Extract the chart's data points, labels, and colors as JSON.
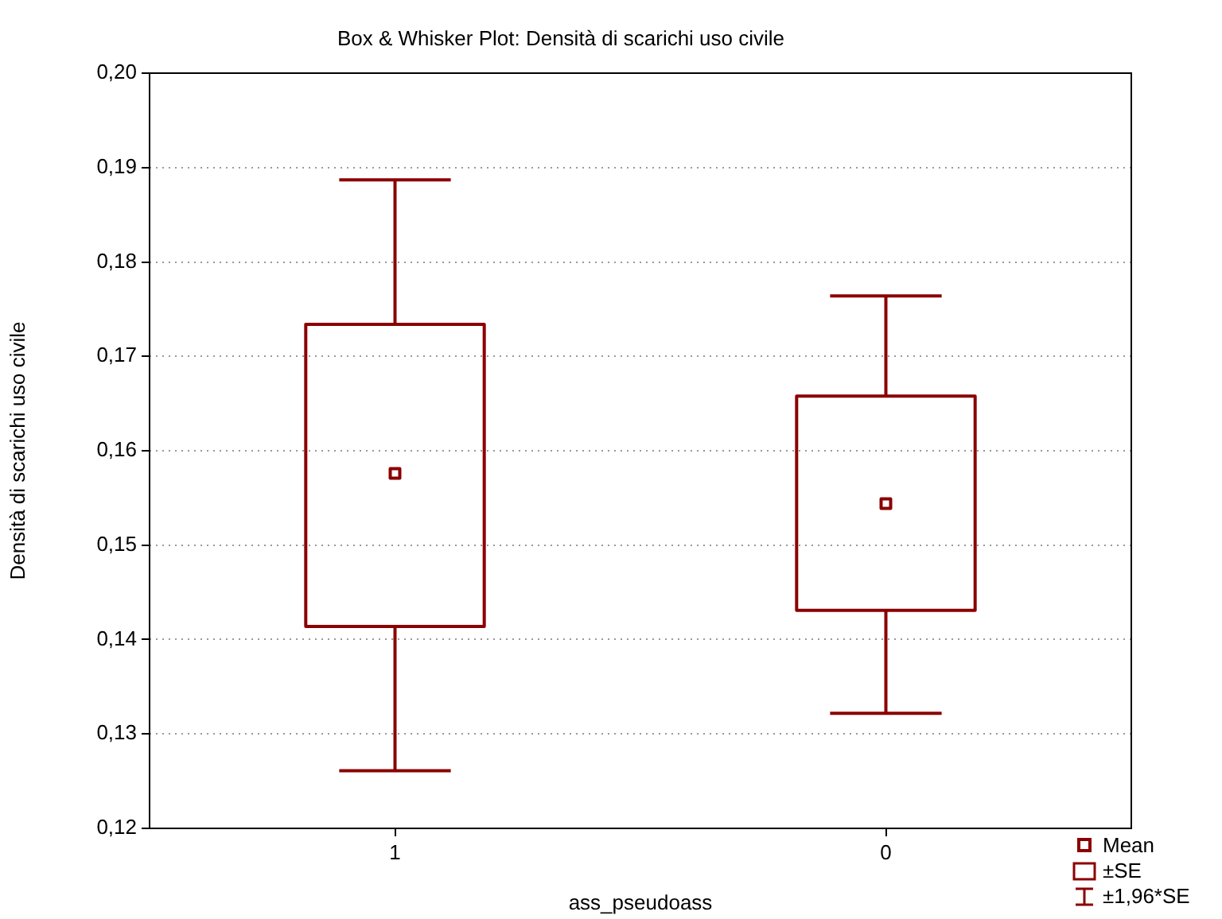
{
  "chart_data": {
    "type": "box",
    "title": "Box & Whisker Plot: Densità di scarichi uso civile",
    "xlabel": "ass_pseudoass",
    "ylabel": "Densità di scarichi uso civile",
    "categories": [
      "1",
      "0"
    ],
    "boxes": [
      {
        "low": 0.1261,
        "q1": 0.1414,
        "q3": 0.1734,
        "high": 0.1887,
        "mean": 0.1576
      },
      {
        "low": 0.1322,
        "q1": 0.1431,
        "q3": 0.1658,
        "high": 0.1764,
        "mean": 0.1544
      }
    ],
    "color": "#8b0000",
    "ylim": [
      0.12,
      0.2
    ],
    "yticks": [
      {
        "value": 0.12,
        "label": "0,12"
      },
      {
        "value": 0.13,
        "label": "0,13"
      },
      {
        "value": 0.14,
        "label": "0,14"
      },
      {
        "value": 0.15,
        "label": "0,15"
      },
      {
        "value": 0.16,
        "label": "0,16"
      },
      {
        "value": 0.17,
        "label": "0,17"
      },
      {
        "value": 0.18,
        "label": "0,18"
      },
      {
        "value": 0.19,
        "label": "0,19"
      },
      {
        "value": 0.2,
        "label": "0,20"
      }
    ],
    "grid": "y",
    "annotations": [
      "Mean",
      "±SE",
      "±1,96*SE"
    ]
  }
}
